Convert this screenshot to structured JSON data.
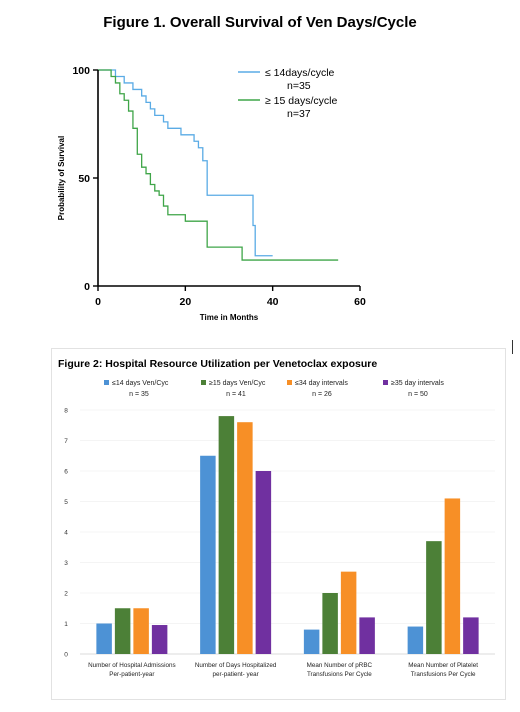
{
  "figure1": {
    "title": "Figure 1. Overall Survival of Ven Days/Cycle",
    "xlabel": "Time in Months",
    "ylabel": "Probability of Survival",
    "x_ticks": [
      "0",
      "20",
      "40",
      "60"
    ],
    "y_ticks": [
      "0",
      "50",
      "100"
    ],
    "legend": [
      {
        "name": "≤ 14days/cycle",
        "n": "n=35",
        "color": "#5aabe5"
      },
      {
        "name": "≥ 15 days/cycle",
        "n": "n=37",
        "color": "#3fa548"
      }
    ]
  },
  "figure2": {
    "title": "Figure 2: Hospital Resource Utilization per Venetoclax exposure",
    "y_ticks": [
      "0",
      "1",
      "2",
      "3",
      "4",
      "5",
      "6",
      "7",
      "8"
    ],
    "legend": [
      {
        "name": "≤14 days Ven/Cyc",
        "n": "n = 35"
      },
      {
        "name": "≥15 days Ven/Cyc",
        "n": "n = 41"
      },
      {
        "name": "≤34 day intervals",
        "n": "n = 26"
      },
      {
        "name": "≥35 day intervals",
        "n": "n = 50"
      }
    ],
    "category_labels": [
      [
        "Number of Hospital Admissions",
        "Per-patient-year"
      ],
      [
        "Number of Days Hospitalized",
        "per-patient- year"
      ],
      [
        "Mean Number of pRBC",
        "Transfusions Per Cycle"
      ],
      [
        "Mean Number of Platelet",
        "Transfusions Per Cycle"
      ]
    ]
  },
  "chart_data": [
    {
      "type": "line",
      "title": "Figure 1. Overall Survival of Ven Days/Cycle",
      "xlabel": "Time in Months",
      "ylabel": "Probability of Survival",
      "xlim": [
        0,
        60
      ],
      "ylim": [
        0,
        100
      ],
      "step": true,
      "series": [
        {
          "name": "≤ 14days/cycle n=35",
          "color": "#5aabe5",
          "x": [
            0,
            3,
            4,
            5,
            6,
            7,
            8,
            9,
            10,
            11,
            12,
            13,
            14,
            15,
            16,
            17,
            19,
            20,
            22,
            23,
            24,
            25,
            35,
            35.5,
            36,
            40
          ],
          "y": [
            100,
            100,
            97,
            97,
            94,
            94,
            91,
            91,
            88,
            85,
            82,
            79,
            79,
            76,
            73,
            73,
            70,
            70,
            67,
            64,
            58,
            42,
            42,
            28,
            14,
            14
          ]
        },
        {
          "name": "≥ 15 days/cycle n=37",
          "color": "#3fa548",
          "x": [
            0,
            2,
            3,
            4,
            5,
            6,
            7,
            8,
            9,
            10,
            11,
            12,
            13,
            14,
            15,
            16,
            18,
            20,
            25,
            33,
            40,
            55
          ],
          "y": [
            100,
            100,
            97,
            94,
            89,
            86,
            81,
            73,
            61,
            55,
            52,
            47,
            44,
            42,
            37,
            33,
            33,
            30,
            18,
            12,
            12,
            12
          ]
        }
      ]
    },
    {
      "type": "bar",
      "title": "Figure 2: Hospital Resource Utilization per Venetoclax exposure",
      "ylim": [
        0,
        8
      ],
      "categories": [
        "Number of Hospital Admissions Per-patient-year",
        "Number of Days Hospitalized per-patient- year",
        "Mean Number of pRBC Transfusions Per Cycle",
        "Mean Number of Platelet Transfusions Per Cycle"
      ],
      "series": [
        {
          "name": "≤14 days Ven/Cyc n = 35",
          "color": "#4d92d5",
          "values": [
            1.0,
            6.5,
            0.8,
            0.9
          ]
        },
        {
          "name": "≥15 days Ven/Cyc n = 41",
          "color": "#4c8037",
          "values": [
            1.5,
            7.8,
            2.0,
            3.7
          ]
        },
        {
          "name": "≤34 day intervals n = 26",
          "color": "#f78f26",
          "values": [
            1.5,
            7.6,
            2.7,
            5.1
          ]
        },
        {
          "name": "≥35 day intervals n = 50",
          "color": "#7030a0",
          "values": [
            0.95,
            6.0,
            1.2,
            1.2
          ]
        }
      ]
    }
  ]
}
